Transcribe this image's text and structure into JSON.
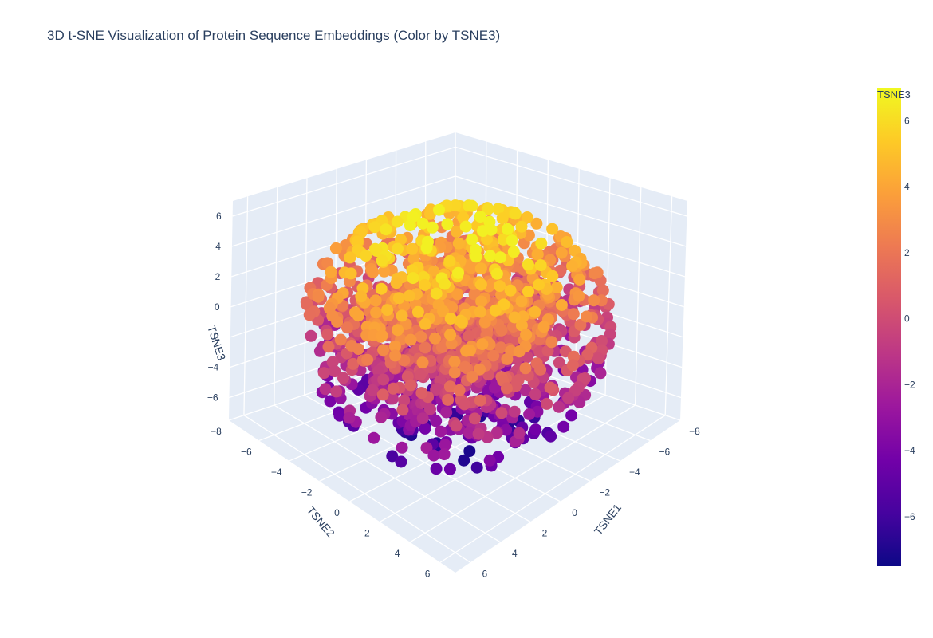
{
  "chart_data": {
    "type": "scatter",
    "projection": "3d",
    "title": "3D t-SNE Visualization of Protein Sequence Embeddings (Color by TSNE3)",
    "axes": {
      "x": {
        "label": "TSNE1",
        "ticks": [
          "−8",
          "−6",
          "−4",
          "−2",
          "0",
          "2",
          "4",
          "6"
        ],
        "range": [
          -8,
          7
        ]
      },
      "y": {
        "label": "TSNE2",
        "ticks": [
          "−8",
          "−6",
          "−4",
          "−2",
          "0",
          "2",
          "4",
          "6"
        ],
        "range": [
          -8,
          7
        ]
      },
      "z": {
        "label": "TSNE3",
        "ticks": [
          "−6",
          "−4",
          "−2",
          "0",
          "2",
          "4",
          "6"
        ],
        "range": [
          -7.5,
          7
        ]
      }
    },
    "grid": true,
    "colorbar": {
      "title": "TSNE3",
      "ticks": [
        "6",
        "4",
        "2",
        "0",
        "−2",
        "−4",
        "−6"
      ],
      "colorscale": [
        "#0d0887",
        "#46039f",
        "#7201a8",
        "#9c179e",
        "#bd3786",
        "#d8576b",
        "#ed7953",
        "#fb9f3a",
        "#fdca26",
        "#f0f921"
      ],
      "range": [
        -7.5,
        7
      ]
    },
    "points_description": "approx. 2000 points forming a roughly spherical cloud centered near (0,0,0), radius ~7; color mapped to TSNE3"
  }
}
